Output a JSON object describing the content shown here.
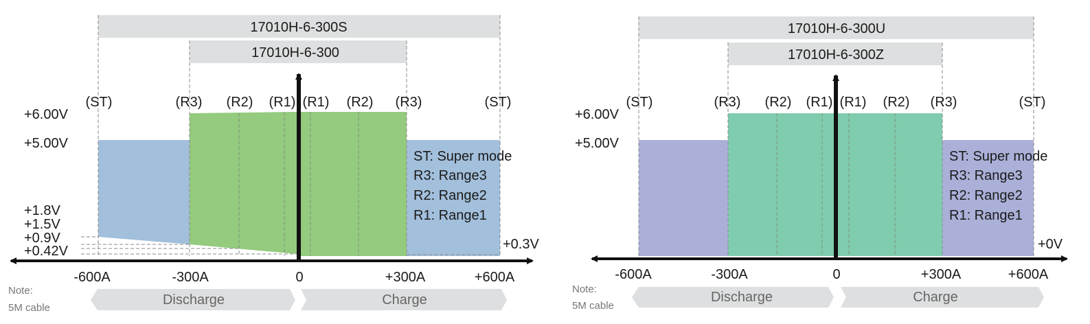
{
  "diagrams": [
    {
      "model_bars": [
        {
          "label": "17010H-6-300S"
        },
        {
          "label": "17010H-6-300"
        }
      ],
      "region_labels": [
        "(ST)",
        "(R3)",
        "(R2)",
        "(R1)",
        "(R1)",
        "(R2)",
        "(R3)",
        "(ST)"
      ],
      "voltage_labels": [
        "+6.00V",
        "+5.00V",
        "+1.8V",
        "+1.5V",
        "+0.9V",
        "+0.42V"
      ],
      "right_voltage_label": "+0.3V",
      "current_labels": [
        "-600A",
        "-300A",
        "0",
        "+300A",
        "+600A"
      ],
      "legend": [
        "ST: Super mode",
        "R3: Range3",
        "R2: Range2",
        "R1: Range1"
      ],
      "note": [
        "Note:",
        "5M cable"
      ],
      "direction_labels": {
        "discharge": "Discharge",
        "charge": "Charge"
      },
      "colors": {
        "super_mode": "#a2bfdb",
        "range": "#94cb7e"
      }
    },
    {
      "model_bars": [
        {
          "label": "17010H-6-300U"
        },
        {
          "label": "17010H-6-300Z"
        }
      ],
      "region_labels": [
        "(ST)",
        "(R3)",
        "(R2)",
        "(R1)",
        "(R1)",
        "(R2)",
        "(R3)",
        "(ST)"
      ],
      "voltage_labels": [
        "+6.00V",
        "+5.00V"
      ],
      "right_voltage_label": "+0V",
      "current_labels": [
        "-600A",
        "-300A",
        "0",
        "+300A",
        "+600A"
      ],
      "legend": [
        "ST: Super mode",
        "R3: Range3",
        "R2: Range2",
        "R1: Range1"
      ],
      "note": [
        "Note:",
        "5M cable"
      ],
      "direction_labels": {
        "discharge": "Discharge",
        "charge": "Charge"
      },
      "colors": {
        "super_mode": "#aab0d8",
        "range": "#7fcdae"
      }
    }
  ]
}
